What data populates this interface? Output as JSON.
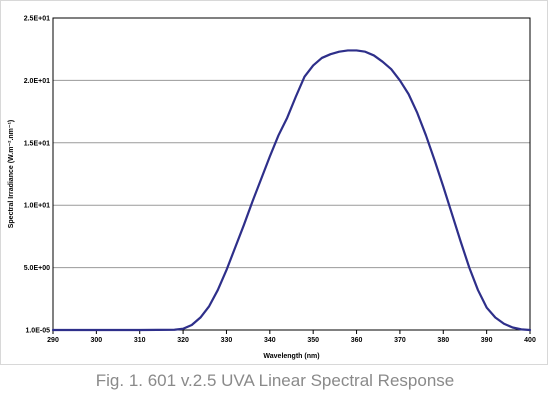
{
  "caption": "Fig. 1. 601 v.2.5 UVA Linear Spectral Response",
  "chart_data": {
    "type": "line",
    "title": "",
    "xlabel": "Wavelength (nm)",
    "ylabel": "Spectral Irradiance (W.m⁻².nm⁻¹)",
    "xlim": [
      290,
      400
    ],
    "ylim": [
      0,
      25
    ],
    "x_ticks": [
      290,
      300,
      310,
      320,
      330,
      340,
      350,
      360,
      370,
      380,
      390,
      400
    ],
    "x_tick_labels": [
      "290",
      "300",
      "310",
      "320",
      "330",
      "340",
      "350",
      "360",
      "370",
      "380",
      "390",
      "400"
    ],
    "y_ticks": [
      0,
      5,
      10,
      15,
      20,
      25
    ],
    "y_tick_labels": [
      "1.0E-05",
      "5.0E+00",
      "1.0E+01",
      "1.5E+01",
      "2.0E+01",
      "2.5E+01"
    ],
    "grid": "horizontal",
    "legend": "none",
    "line_color": "#2e2f8a",
    "series": [
      {
        "x": [
          290,
          300,
          310,
          318,
          320,
          322,
          324,
          326,
          328,
          330,
          332,
          334,
          336,
          338,
          340,
          342,
          344,
          346,
          348,
          350,
          352,
          354,
          356,
          358,
          360,
          362,
          364,
          366,
          368,
          370,
          372,
          374,
          376,
          378,
          380,
          382,
          384,
          386,
          388,
          390,
          392,
          394,
          396,
          398,
          400
        ],
        "y": [
          0,
          0,
          0,
          0.02,
          0.1,
          0.4,
          1.0,
          1.9,
          3.2,
          4.8,
          6.6,
          8.4,
          10.3,
          12.1,
          13.9,
          15.6,
          17.0,
          18.7,
          20.3,
          21.2,
          21.8,
          22.1,
          22.3,
          22.4,
          22.4,
          22.3,
          22.0,
          21.5,
          20.9,
          20.0,
          18.9,
          17.4,
          15.6,
          13.6,
          11.5,
          9.3,
          7.1,
          5.0,
          3.2,
          1.8,
          1.0,
          0.5,
          0.2,
          0.05,
          0
        ]
      }
    ]
  }
}
